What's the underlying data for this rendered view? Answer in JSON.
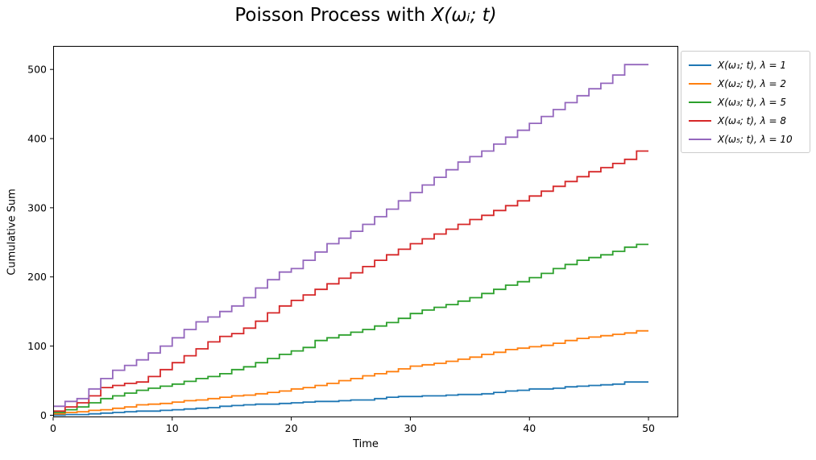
{
  "chart_data": {
    "type": "step-line",
    "title": "Poisson Process with X(ωᵢ; t)",
    "title_prefix": "Poisson Process with ",
    "title_math": "X(ωᵢ; t)",
    "xlabel": "Time",
    "ylabel": "Cumulative Sum",
    "xlim": [
      0,
      52.5
    ],
    "ylim": [
      -3,
      534
    ],
    "xticks": [
      0,
      10,
      20,
      30,
      40,
      50
    ],
    "yticks": [
      0,
      100,
      200,
      300,
      400,
      500
    ],
    "grid": false,
    "legend_position": "outside-upper-right",
    "step_mode": "post",
    "x": [
      0,
      1,
      2,
      3,
      4,
      5,
      6,
      7,
      8,
      9,
      10,
      11,
      12,
      13,
      14,
      15,
      16,
      17,
      18,
      19,
      20,
      21,
      22,
      23,
      24,
      25,
      26,
      27,
      28,
      29,
      30,
      31,
      32,
      33,
      34,
      35,
      36,
      37,
      38,
      39,
      40,
      41,
      42,
      43,
      44,
      45,
      46,
      47,
      48,
      49,
      50
    ],
    "series": [
      {
        "label": "X(ω₁; t), λ = 1",
        "lambda": 1,
        "color": "#1f77b4",
        "values": [
          0,
          1,
          1,
          2,
          3,
          4,
          5,
          6,
          6,
          7,
          8,
          9,
          10,
          11,
          13,
          14,
          15,
          16,
          16,
          17,
          18,
          19,
          20,
          20,
          21,
          22,
          22,
          24,
          26,
          27,
          27,
          28,
          28,
          29,
          30,
          30,
          31,
          33,
          35,
          36,
          38,
          38,
          39,
          41,
          42,
          43,
          44,
          45,
          48,
          48,
          48
        ]
      },
      {
        "label": "X(ω₂; t), λ = 2",
        "lambda": 2,
        "color": "#ff7f0e",
        "values": [
          2,
          4,
          5,
          7,
          8,
          10,
          12,
          15,
          16,
          17,
          19,
          21,
          22,
          24,
          26,
          28,
          29,
          31,
          33,
          35,
          38,
          40,
          43,
          46,
          50,
          53,
          57,
          60,
          63,
          67,
          71,
          73,
          75,
          78,
          81,
          84,
          88,
          91,
          95,
          97,
          99,
          101,
          104,
          108,
          111,
          113,
          115,
          117,
          119,
          122,
          122
        ]
      },
      {
        "label": "X(ω₃; t), λ = 5",
        "lambda": 5,
        "color": "#2ca02c",
        "values": [
          4,
          8,
          12,
          18,
          24,
          28,
          32,
          36,
          39,
          42,
          45,
          49,
          53,
          56,
          60,
          66,
          70,
          76,
          82,
          88,
          93,
          98,
          108,
          112,
          116,
          120,
          124,
          129,
          134,
          140,
          147,
          152,
          156,
          160,
          165,
          170,
          176,
          182,
          188,
          193,
          199,
          205,
          212,
          218,
          224,
          228,
          232,
          237,
          243,
          247,
          247
        ]
      },
      {
        "label": "X(ω₄; t), λ = 8",
        "lambda": 8,
        "color": "#d62728",
        "values": [
          6,
          12,
          18,
          28,
          40,
          43,
          46,
          48,
          56,
          66,
          76,
          86,
          96,
          106,
          114,
          118,
          126,
          136,
          148,
          158,
          166,
          174,
          182,
          190,
          198,
          206,
          215,
          224,
          232,
          240,
          248,
          255,
          262,
          269,
          276,
          283,
          289,
          296,
          303,
          310,
          317,
          324,
          331,
          338,
          345,
          352,
          358,
          364,
          370,
          382,
          382
        ]
      },
      {
        "label": "X(ω₅; t), λ = 10",
        "lambda": 10,
        "color": "#9467bd",
        "values": [
          13,
          20,
          24,
          38,
          53,
          65,
          72,
          80,
          90,
          100,
          112,
          124,
          135,
          142,
          150,
          158,
          170,
          184,
          196,
          207,
          212,
          224,
          236,
          248,
          256,
          266,
          276,
          287,
          298,
          310,
          322,
          333,
          344,
          355,
          366,
          374,
          382,
          392,
          402,
          412,
          422,
          432,
          442,
          452,
          462,
          472,
          480,
          492,
          507,
          507,
          507
        ]
      }
    ],
    "axis_color": "#000000",
    "background_color": "#ffffff"
  }
}
